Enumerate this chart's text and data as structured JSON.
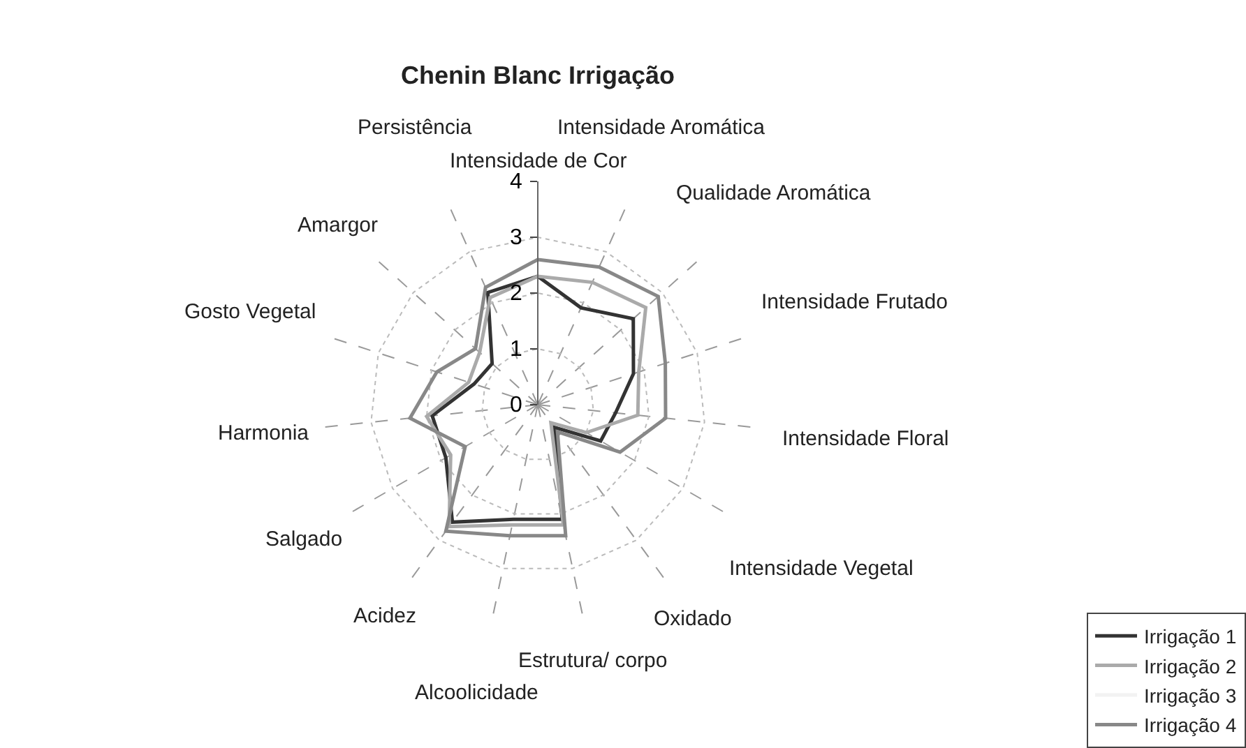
{
  "chart_data": {
    "type": "radar",
    "title": "Chenin Blanc Irrigação",
    "categories": [
      "Intensidade de Cor",
      "Intensidade Aromática",
      "Qualidade Aromática",
      "Intensidade Frutado",
      "Intensidade Floral",
      "Intensidade Vegetal",
      "Oxidado",
      "Estrutura/ corpo",
      "Alcoolicidade",
      "Acidez",
      "Salgado",
      "Harmonia",
      "Gosto Vegetal",
      "Amargor",
      "Persistência"
    ],
    "series": [
      {
        "name": "Irrigação 1",
        "color": "#333333",
        "values": [
          2.3,
          1.9,
          2.3,
          1.8,
          1.4,
          1.3,
          0.5,
          2.1,
          2.1,
          2.6,
          1.9,
          1.9,
          1.2,
          1.1,
          2.2
        ]
      },
      {
        "name": "Irrigação 2",
        "color": "#aaaaaa",
        "values": [
          2.3,
          2.4,
          2.6,
          1.9,
          1.8,
          1.0,
          0.4,
          2.2,
          2.2,
          2.7,
          1.8,
          2.0,
          1.3,
          1.4,
          2.1
        ]
      },
      {
        "name": "Irrigação 3",
        "color": "#f2f2f2",
        "values": [
          null,
          null,
          null,
          null,
          null,
          null,
          null,
          null,
          null,
          null,
          null,
          null,
          null,
          null,
          null
        ]
      },
      {
        "name": "Irrigação 4",
        "color": "#888888",
        "values": [
          2.6,
          2.7,
          2.9,
          2.4,
          2.3,
          1.7,
          0.6,
          2.4,
          2.4,
          2.8,
          1.5,
          2.3,
          1.9,
          1.5,
          2.3
        ]
      }
    ],
    "ylim": [
      0,
      4
    ],
    "yticks": [
      0,
      1,
      2,
      3,
      4
    ],
    "grid": true,
    "legend": "bottom right",
    "marker": "none",
    "line_style": "solid"
  }
}
